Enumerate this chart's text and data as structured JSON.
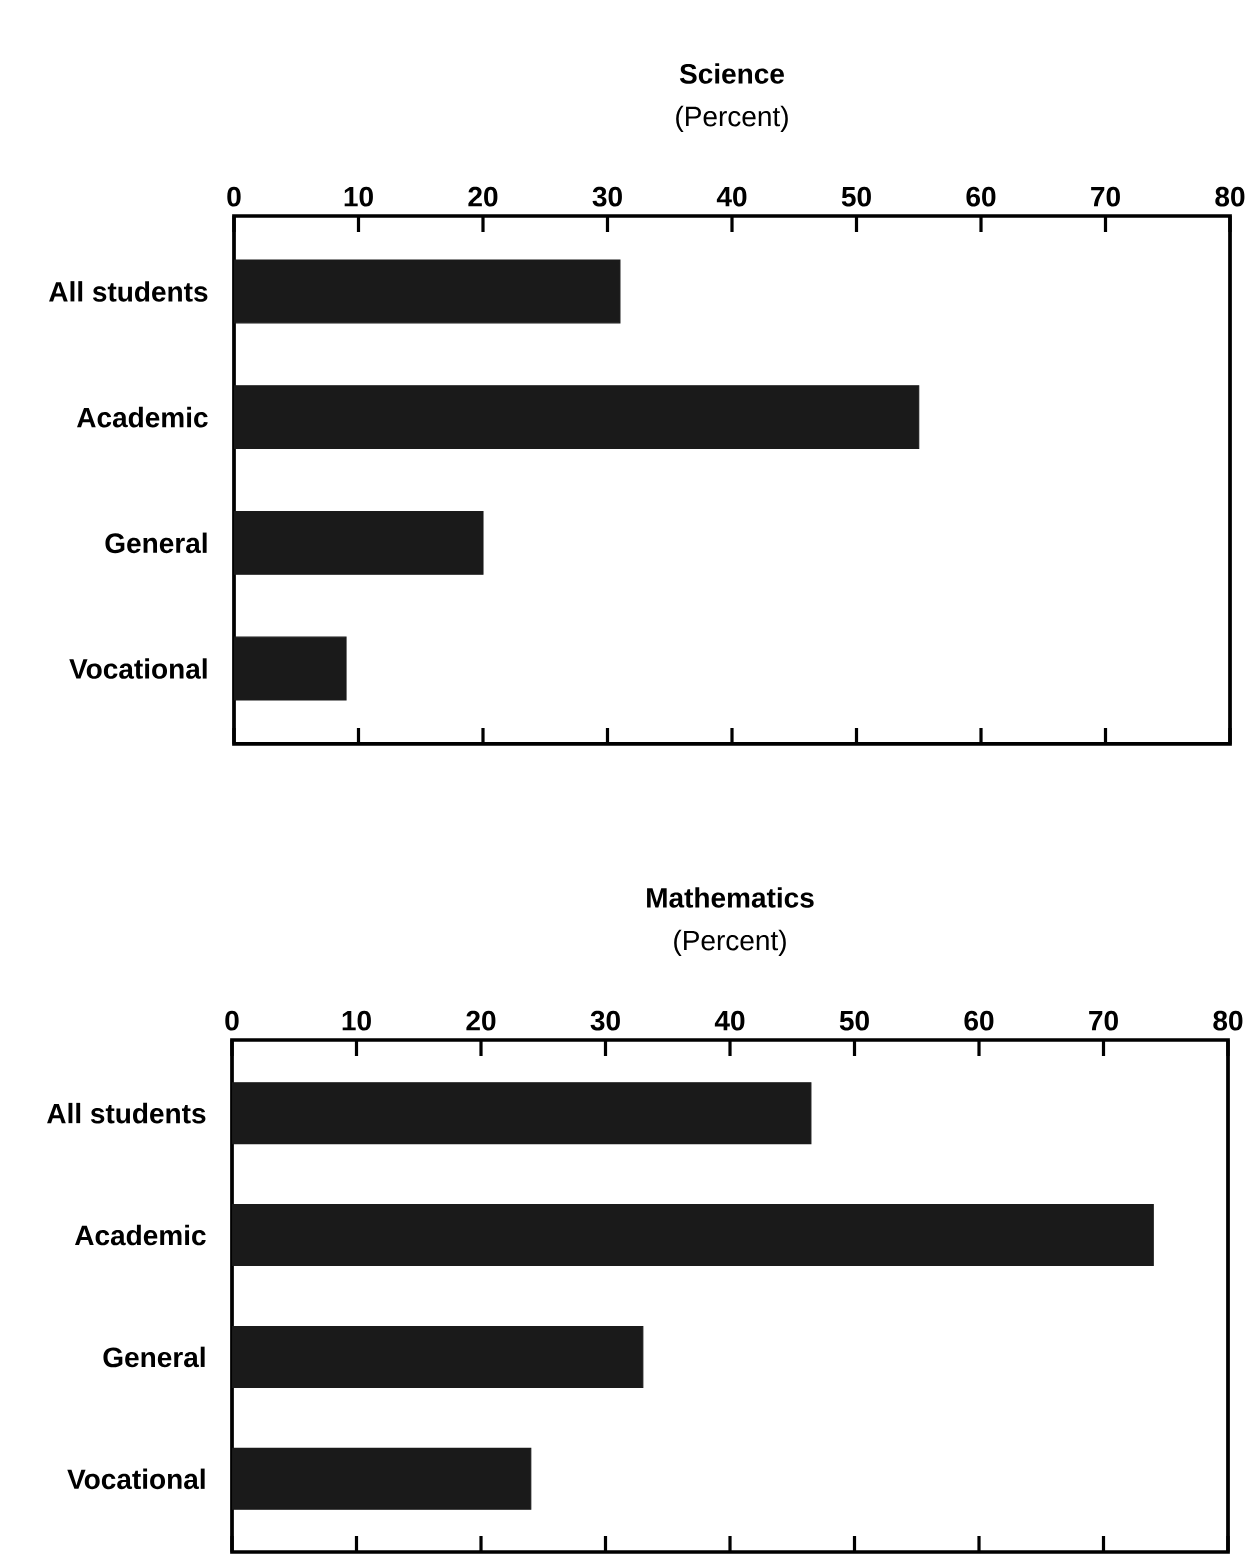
{
  "chart_data": [
    {
      "type": "bar",
      "orientation": "horizontal",
      "title": "Science",
      "subtitle": "(Percent)",
      "categories": [
        "All students",
        "Academic",
        "General",
        "Vocational"
      ],
      "values": [
        31,
        55,
        20,
        9
      ],
      "color": "#1a1a1a",
      "xlim": [
        0,
        80
      ],
      "xticks": [
        0,
        10,
        20,
        30,
        40,
        50,
        60,
        70,
        80
      ]
    },
    {
      "type": "bar",
      "orientation": "horizontal",
      "title": "Mathematics",
      "subtitle": "(Percent)",
      "categories": [
        "All students",
        "Academic",
        "General",
        "Vocational"
      ],
      "values": [
        46.5,
        74,
        33,
        24
      ],
      "color": "#1a1a1a",
      "xlim": [
        0,
        80
      ],
      "xticks": [
        0,
        10,
        20,
        30,
        40,
        50,
        60,
        70,
        80
      ]
    }
  ]
}
